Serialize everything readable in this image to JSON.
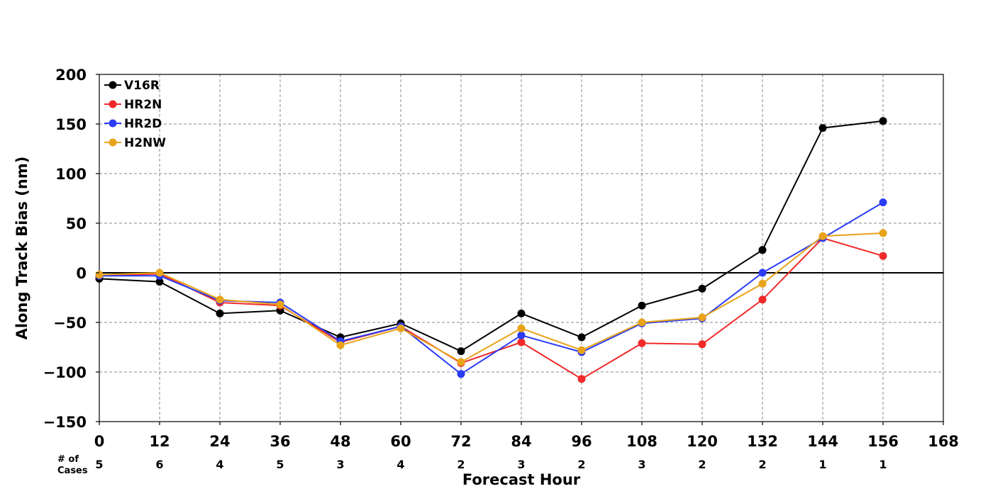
{
  "chart_data": {
    "type": "line",
    "title": "",
    "xlabel": "Forecast Hour",
    "ylabel": "Along Track Bias (nm)",
    "xlim": [
      0,
      168
    ],
    "ylim": [
      -150,
      200
    ],
    "x_ticks": [
      0,
      12,
      24,
      36,
      48,
      60,
      72,
      84,
      96,
      108,
      120,
      132,
      144,
      156,
      168
    ],
    "x_tick_labels": [
      "0",
      "12",
      "24",
      "36",
      "48",
      "60",
      "72",
      "84",
      "96",
      "108",
      "120",
      "132",
      "144",
      "156",
      "168"
    ],
    "y_ticks": [
      -150,
      -100,
      -50,
      0,
      50,
      100,
      150,
      200
    ],
    "y_tick_labels": [
      "−150",
      "−100",
      "−50",
      "0",
      "50",
      "100",
      "150",
      "200"
    ],
    "grid": true,
    "zero_line": true,
    "legend_position": "top-left",
    "cases_label_line1": "# of",
    "cases_label_line2": "Cases",
    "cases": {
      "x": [
        0,
        12,
        24,
        36,
        48,
        60,
        72,
        84,
        96,
        108,
        120,
        132,
        144,
        156
      ],
      "counts": [
        "5",
        "6",
        "4",
        "5",
        "3",
        "4",
        "2",
        "3",
        "2",
        "3",
        "2",
        "2",
        "1",
        "1"
      ]
    },
    "series": [
      {
        "name": "V16R",
        "color": "#000000",
        "x": [
          0,
          12,
          24,
          36,
          48,
          60,
          72,
          84,
          96,
          108,
          120,
          132,
          144,
          156
        ],
        "values": [
          -6,
          -9,
          -41,
          -38,
          -65,
          -51,
          -79,
          -41,
          -65,
          -33,
          -16,
          23,
          146,
          153
        ]
      },
      {
        "name": "HR2N",
        "color": "#f02a2a",
        "x": [
          0,
          12,
          24,
          36,
          48,
          60,
          72,
          84,
          96,
          108,
          120,
          132,
          144,
          156
        ],
        "values": [
          -3,
          -1,
          -30,
          -33,
          -70,
          -54,
          -91,
          -70,
          -107,
          -71,
          -72,
          -27,
          35,
          17
        ]
      },
      {
        "name": "HR2D",
        "color": "#2a3cf5",
        "x": [
          0,
          12,
          24,
          36,
          48,
          60,
          72,
          84,
          96,
          108,
          120,
          132,
          144,
          156
        ],
        "values": [
          -3,
          -3,
          -28,
          -30,
          -69,
          -54,
          -102,
          -63,
          -80,
          -51,
          -46,
          0,
          35,
          71
        ]
      },
      {
        "name": "H2NW",
        "color": "#e8a31a",
        "x": [
          0,
          12,
          24,
          36,
          48,
          60,
          72,
          84,
          96,
          108,
          120,
          132,
          144,
          156
        ],
        "values": [
          -2,
          0,
          -27,
          -32,
          -73,
          -56,
          -90,
          -56,
          -78,
          -50,
          -45,
          -11,
          37,
          40
        ]
      }
    ]
  }
}
